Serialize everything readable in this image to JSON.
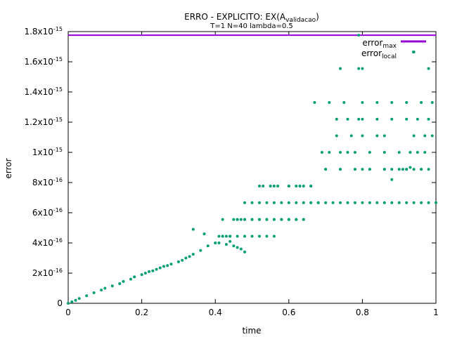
{
  "chart_data": {
    "type": "scatter",
    "title": "ERRO - EXPLICITO: EX(A",
    "title_subscript": "validacao",
    "title_close": ")",
    "subtitle": "T=1 N=40 lambda=0.5",
    "xlabel": "time",
    "ylabel": "error",
    "xlim": [
      0,
      1
    ],
    "ylim": [
      0,
      1.8e-15
    ],
    "x_ticks": [
      {
        "value": 0,
        "label": "0"
      },
      {
        "value": 0.2,
        "label": "0.2"
      },
      {
        "value": 0.4,
        "label": "0.4"
      },
      {
        "value": 0.6,
        "label": "0.6"
      },
      {
        "value": 0.8,
        "label": "0.8"
      },
      {
        "value": 1,
        "label": "1"
      }
    ],
    "y_ticks": [
      {
        "value": 0,
        "mant": "0",
        "exp": ""
      },
      {
        "value": 2e-16,
        "mant": "2x10",
        "exp": "-16"
      },
      {
        "value": 4e-16,
        "mant": "4x10",
        "exp": "-16"
      },
      {
        "value": 6e-16,
        "mant": "6x10",
        "exp": "-16"
      },
      {
        "value": 8e-16,
        "mant": "8x10",
        "exp": "-16"
      },
      {
        "value": 1e-15,
        "mant": "1x10",
        "exp": "-15"
      },
      {
        "value": 1.2e-15,
        "mant": "1.2x10",
        "exp": "-15"
      },
      {
        "value": 1.4e-15,
        "mant": "1.4x10",
        "exp": "-15"
      },
      {
        "value": 1.6e-15,
        "mant": "1.6x10",
        "exp": "-15"
      },
      {
        "value": 1.8e-15,
        "mant": "1.8x10",
        "exp": "-15"
      }
    ],
    "legend_position": "top-right",
    "series": [
      {
        "name": "error",
        "name_subscript": "max",
        "kind": "line",
        "color": "#9400d3",
        "x": [
          0,
          1
        ],
        "values": [
          1.776e-15,
          1.776e-15
        ]
      },
      {
        "name": "error",
        "name_subscript": "local",
        "kind": "points",
        "color": "#009e73",
        "x": [
          0.0,
          0.01,
          0.02,
          0.03,
          0.05,
          0.07,
          0.09,
          0.1,
          0.12,
          0.14,
          0.15,
          0.17,
          0.18,
          0.2,
          0.21,
          0.22,
          0.23,
          0.24,
          0.25,
          0.26,
          0.27,
          0.28,
          0.3,
          0.31,
          0.32,
          0.33,
          0.34,
          0.36,
          0.38,
          0.4,
          0.41,
          0.42,
          0.43,
          0.44,
          0.45,
          0.46,
          0.47,
          0.48,
          0.5,
          0.52,
          0.54,
          0.56,
          0.58,
          0.6,
          0.62,
          0.64,
          0.66,
          0.68,
          0.7,
          0.72,
          0.74,
          0.76,
          0.78,
          0.8,
          0.82,
          0.84,
          0.86,
          0.88,
          0.9,
          0.92,
          0.94,
          0.96,
          0.98,
          1.0,
          0.34,
          0.37,
          0.42,
          0.46,
          0.52,
          0.56,
          0.6,
          0.62,
          0.64,
          0.66,
          0.7,
          0.74,
          0.78,
          0.8,
          0.82,
          0.86,
          0.88,
          0.9,
          0.92,
          0.94,
          0.96,
          0.98,
          0.69,
          0.71,
          0.74,
          0.76,
          0.78,
          0.82,
          0.86,
          0.9,
          0.93,
          0.95,
          0.97,
          0.73,
          0.77,
          0.8,
          0.84,
          0.86,
          0.94,
          0.97,
          0.99,
          0.73,
          0.76,
          0.79,
          0.8,
          0.84,
          0.88,
          0.92,
          0.95,
          0.98,
          0.67,
          0.71,
          0.75,
          0.8,
          0.84,
          0.88,
          0.92,
          0.96,
          0.99,
          0.53,
          0.55,
          0.57,
          0.6,
          0.63,
          0.66,
          0.7,
          0.74,
          0.78,
          0.82,
          0.86,
          0.91,
          0.92,
          0.96,
          0.88,
          0.93,
          0.48,
          0.5,
          0.52,
          0.54,
          0.56,
          0.58,
          0.6,
          0.62,
          0.64,
          0.66,
          0.68,
          0.46,
          0.48,
          0.5,
          0.52,
          0.54,
          0.56,
          0.58,
          0.6,
          0.62,
          0.64,
          0.42,
          0.44,
          0.46,
          0.48,
          0.5,
          0.52,
          0.54,
          0.56,
          0.43,
          0.45,
          0.47,
          0.41,
          0.44,
          0.46,
          0.48,
          0.74,
          0.79,
          0.8,
          0.98,
          0.94,
          0.79
        ],
        "values": [
          0,
          1e-17,
          2e-17,
          3.2e-17,
          5e-17,
          7e-17,
          8.8e-17,
          1e-16,
          1.15e-16,
          1.3e-16,
          1.45e-16,
          1.6e-16,
          1.75e-16,
          1.9e-16,
          2e-16,
          2.1e-16,
          2.15e-16,
          2.25e-16,
          2.35e-16,
          2.45e-16,
          2.5e-16,
          2.6e-16,
          2.75e-16,
          2.85e-16,
          3e-16,
          3.1e-16,
          3.25e-16,
          3.5e-16,
          3.8e-16,
          4e-16,
          4.44e-16,
          4.44e-16,
          4.44e-16,
          4.44e-16,
          5.55e-16,
          5.55e-16,
          5.55e-16,
          5.55e-16,
          5.55e-16,
          5.55e-16,
          5.55e-16,
          5.55e-16,
          5.55e-16,
          5.55e-16,
          5.55e-16,
          5.55e-16,
          6.66e-16,
          6.66e-16,
          6.66e-16,
          6.66e-16,
          6.66e-16,
          6.66e-16,
          6.66e-16,
          6.66e-16,
          6.66e-16,
          6.66e-16,
          6.66e-16,
          6.66e-16,
          6.66e-16,
          6.66e-16,
          6.66e-16,
          6.66e-16,
          6.66e-16,
          6.66e-16,
          4.9e-16,
          4.6e-16,
          5.55e-16,
          5.55e-16,
          7.77e-16,
          7.77e-16,
          7.77e-16,
          7.77e-16,
          7.77e-16,
          7.77e-16,
          8.88e-16,
          8.88e-16,
          8.88e-16,
          8.88e-16,
          8.88e-16,
          8.88e-16,
          8.88e-16,
          8.88e-16,
          8.88e-16,
          8.88e-16,
          8.88e-16,
          8.88e-16,
          1e-15,
          1e-15,
          1e-15,
          1e-15,
          1e-15,
          1e-15,
          1e-15,
          1e-15,
          1e-15,
          1e-15,
          1e-15,
          1.11e-15,
          1.11e-15,
          1.11e-15,
          1.11e-15,
          1.11e-15,
          1.11e-15,
          1.11e-15,
          1.11e-15,
          1.22e-15,
          1.22e-15,
          1.22e-15,
          1.22e-15,
          1.22e-15,
          1.22e-15,
          1.22e-15,
          1.22e-15,
          1.22e-15,
          1.33e-15,
          1.33e-15,
          1.33e-15,
          1.33e-15,
          1.33e-15,
          1.33e-15,
          1.33e-15,
          1.33e-15,
          1.33e-15,
          7.77e-16,
          7.77e-16,
          7.77e-16,
          7.77e-16,
          7.77e-16,
          7.77e-16,
          8.88e-16,
          8.88e-16,
          8.88e-16,
          8.88e-16,
          8.88e-16,
          8.88e-16,
          8.88e-16,
          8.88e-16,
          8.2e-16,
          9e-16,
          6.66e-16,
          6.66e-16,
          6.66e-16,
          6.66e-16,
          6.66e-16,
          6.66e-16,
          6.66e-16,
          6.66e-16,
          6.66e-16,
          6.66e-16,
          6.66e-16,
          5.55e-16,
          5.55e-16,
          5.55e-16,
          5.55e-16,
          5.55e-16,
          5.55e-16,
          5.55e-16,
          5.55e-16,
          5.55e-16,
          5.55e-16,
          4.44e-16,
          4.44e-16,
          4.44e-16,
          4.44e-16,
          4.44e-16,
          4.44e-16,
          4.44e-16,
          4.44e-16,
          3.9e-16,
          3.8e-16,
          3.6e-16,
          4e-16,
          4.1e-16,
          3.7e-16,
          3.4e-16,
          1.555e-15,
          1.555e-15,
          1.555e-15,
          1.555e-15,
          1.665e-15,
          1.776e-15
        ]
      }
    ]
  }
}
